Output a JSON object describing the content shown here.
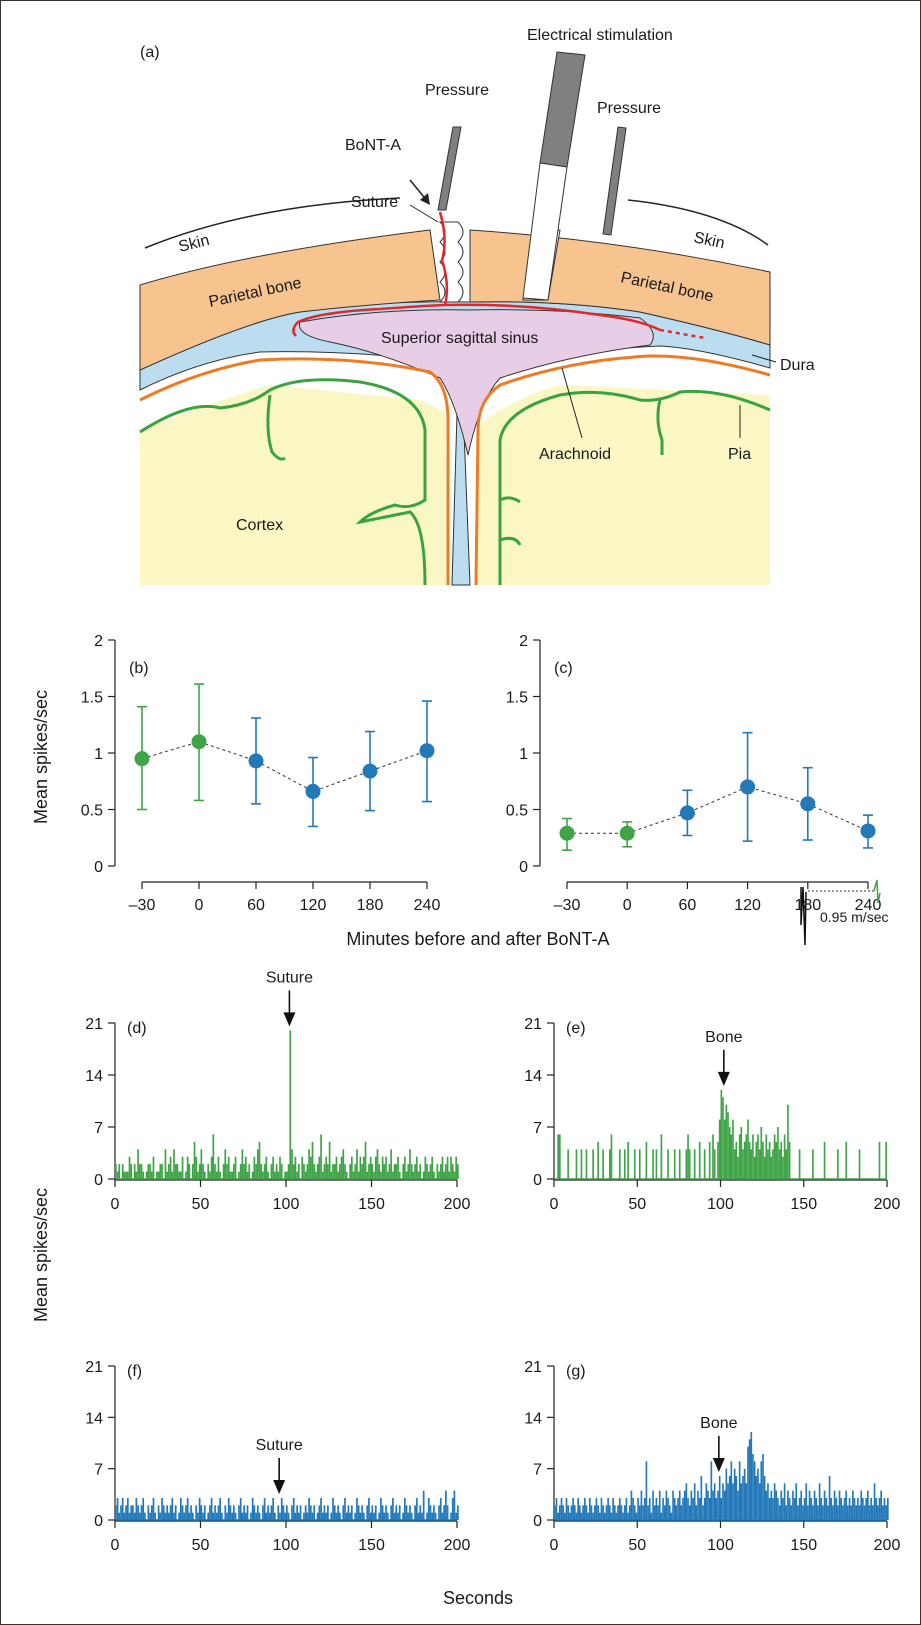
{
  "panel_a": {
    "label": "(a)",
    "labels": {
      "electrical_stimulation": "Electrical stimulation",
      "pressure_left": "Pressure",
      "pressure_right": "Pressure",
      "bont_a": "BoNT-A",
      "suture": "Suture",
      "skin_left": "Skin",
      "skin_right": "Skin",
      "parietal_left": "Parietal bone",
      "parietal_right": "Parietal bone",
      "sinus": "Superior sagittal sinus",
      "dura": "Dura",
      "arachnoid": "Arachnoid",
      "pia": "Pia",
      "cortex": "Cortex"
    },
    "colors": {
      "bone": "#f7c38e",
      "dura": "#bcdcf0",
      "sinus": "#e8cde6",
      "cortex": "#fbf7c4",
      "pia": "#3aa340",
      "arachnoid": "#f07a22",
      "nerve": "#e02828",
      "electrode": "#808080"
    }
  },
  "shared": {
    "mid_xlabel": "Minutes before and after BoNT-A",
    "mid_ylabel": "Mean spikes/sec",
    "bottom_xlabel": "Seconds",
    "bottom_ylabel": "Mean spikes/sec",
    "inset_speed": "0.95 m/sec"
  },
  "chart_data": [
    {
      "id": "b",
      "label": "(b)",
      "type": "scatter",
      "x": [
        "–30",
        "0",
        "60",
        "120",
        "180",
        "240"
      ],
      "y": [
        0.95,
        1.1,
        0.93,
        0.66,
        0.84,
        1.02
      ],
      "err_low": [
        0.5,
        0.58,
        0.55,
        0.35,
        0.49,
        0.57
      ],
      "err_high": [
        1.41,
        1.61,
        1.31,
        0.96,
        1.19,
        1.46
      ],
      "colors": [
        "#3fa447",
        "#3fa447",
        "#2378b8",
        "#2378b8",
        "#2378b8",
        "#2378b8"
      ],
      "yticks": [
        "0",
        "0.5",
        "1",
        "1.5",
        "2"
      ],
      "ylim": [
        0,
        2
      ]
    },
    {
      "id": "c",
      "label": "(c)",
      "type": "scatter",
      "x": [
        "–30",
        "0",
        "60",
        "120",
        "180",
        "240"
      ],
      "y": [
        0.29,
        0.29,
        0.47,
        0.7,
        0.55,
        0.31
      ],
      "err_low": [
        0.14,
        0.17,
        0.27,
        0.22,
        0.23,
        0.16
      ],
      "err_high": [
        0.42,
        0.39,
        0.67,
        1.18,
        0.87,
        0.45
      ],
      "colors": [
        "#3fa447",
        "#3fa447",
        "#2378b8",
        "#2378b8",
        "#2378b8",
        "#2378b8"
      ],
      "yticks": [
        "0",
        "0.5",
        "1",
        "1.5",
        "2"
      ],
      "ylim": [
        0,
        2
      ]
    },
    {
      "id": "d",
      "label": "(d)",
      "type": "bar",
      "color": "#3fa447",
      "xlim": [
        0,
        200
      ],
      "ylim": [
        0,
        21
      ],
      "xticks": [
        "0",
        "50",
        "100",
        "150",
        "200"
      ],
      "yticks": [
        "0",
        "7",
        "14",
        "21"
      ],
      "marker": {
        "label": "Suture",
        "x": 102
      },
      "bin_width": 1,
      "x_start": 0,
      "values": [
        2,
        1,
        2,
        0,
        2,
        1,
        1,
        1,
        3,
        2,
        0,
        2,
        1,
        4,
        2,
        2,
        1,
        0,
        1,
        2,
        2,
        1,
        3,
        0,
        1,
        1,
        2,
        2,
        0,
        4,
        1,
        2,
        3,
        1,
        4,
        2,
        2,
        1,
        1,
        3,
        0,
        1,
        3,
        2,
        0,
        2,
        5,
        3,
        1,
        2,
        4,
        2,
        1,
        0,
        2,
        1,
        3,
        6,
        2,
        1,
        3,
        1,
        0,
        2,
        4,
        2,
        3,
        1,
        1,
        2,
        3,
        0,
        1,
        2,
        4,
        2,
        3,
        1,
        2,
        0,
        1,
        3,
        2,
        4,
        5,
        2,
        1,
        2,
        3,
        1,
        0,
        2,
        3,
        1,
        2,
        1,
        3,
        2,
        0,
        1,
        1,
        2,
        20,
        4,
        2,
        3,
        1,
        2,
        0,
        3,
        2,
        1,
        2,
        4,
        3,
        5,
        2,
        1,
        2,
        3,
        6,
        1,
        2,
        3,
        2,
        5,
        1,
        2,
        2,
        3,
        1,
        2,
        3,
        4,
        2,
        1,
        0,
        2,
        3,
        1,
        2,
        4,
        1,
        3,
        2,
        3,
        5,
        1,
        2,
        3,
        2,
        1,
        3,
        4,
        2,
        1,
        3,
        2,
        3,
        1,
        2,
        4,
        1,
        2,
        2,
        3,
        1,
        0,
        2,
        3,
        1,
        2,
        4,
        2,
        1,
        2,
        3,
        1,
        2,
        0,
        1,
        3,
        2,
        1,
        2,
        3,
        1,
        0,
        2,
        1,
        2,
        3,
        1,
        2,
        3,
        1,
        3,
        2,
        1,
        3,
        2
      ]
    },
    {
      "id": "e",
      "label": "(e)",
      "type": "bar",
      "color": "#3fa447",
      "xlim": [
        0,
        200
      ],
      "ylim": [
        0,
        21
      ],
      "xticks": [
        "0",
        "50",
        "100",
        "150",
        "200"
      ],
      "yticks": [
        "0",
        "7",
        "14",
        "21"
      ],
      "marker": {
        "label": "Bone",
        "x": 102
      },
      "bin_width": 1,
      "x_start": 0,
      "values": [
        0,
        0,
        6,
        6,
        0,
        0,
        0,
        0,
        4,
        0,
        0,
        0,
        0,
        4,
        0,
        0,
        4,
        0,
        0,
        4,
        0,
        0,
        0,
        4,
        0,
        0,
        5,
        0,
        0,
        4,
        0,
        0,
        0,
        4,
        6,
        0,
        0,
        0,
        0,
        4,
        0,
        0,
        4,
        0,
        5,
        0,
        0,
        0,
        4,
        0,
        0,
        4,
        0,
        0,
        0,
        5,
        0,
        0,
        0,
        4,
        0,
        4,
        0,
        0,
        6,
        0,
        0,
        0,
        4,
        0,
        0,
        0,
        4,
        0,
        0,
        4,
        0,
        0,
        0,
        4,
        6,
        4,
        0,
        0,
        4,
        0,
        0,
        5,
        0,
        0,
        4,
        0,
        0,
        5,
        0,
        6,
        4,
        0,
        5,
        8,
        12,
        11,
        8,
        10,
        9,
        7,
        6,
        8,
        4,
        5,
        3,
        6,
        7,
        4,
        5,
        6,
        8,
        5,
        4,
        6,
        3,
        5,
        6,
        4,
        7,
        5,
        3,
        6,
        4,
        5,
        3,
        4,
        6,
        5,
        7,
        4,
        5,
        3,
        6,
        4,
        10,
        5,
        0,
        0,
        0,
        0,
        0,
        4,
        0,
        0,
        0,
        0,
        0,
        0,
        0,
        4,
        0,
        0,
        0,
        0,
        0,
        0,
        5,
        0,
        0,
        0,
        0,
        0,
        0,
        0,
        4,
        0,
        0,
        0,
        0,
        5,
        0,
        0,
        0,
        0,
        0,
        0,
        0,
        4,
        0,
        0,
        0,
        0,
        0,
        0,
        0,
        0,
        0,
        0,
        0,
        5,
        0,
        0,
        0,
        5,
        0
      ]
    },
    {
      "id": "f",
      "label": "(f)",
      "type": "bar",
      "color": "#2378b8",
      "xlim": [
        0,
        200
      ],
      "ylim": [
        0,
        21
      ],
      "xticks": [
        "0",
        "50",
        "100",
        "150",
        "200"
      ],
      "yticks": [
        "0",
        "7",
        "14",
        "21"
      ],
      "marker": {
        "label": "Suture",
        "x": 96
      },
      "bin_width": 1,
      "x_start": 0,
      "values": [
        2,
        3,
        1,
        2,
        3,
        1,
        2,
        3,
        1,
        2,
        2,
        1,
        3,
        2,
        1,
        2,
        3,
        1,
        0,
        2,
        1,
        2,
        3,
        1,
        0,
        2,
        1,
        3,
        2,
        1,
        2,
        1,
        2,
        3,
        1,
        2,
        0,
        1,
        3,
        2,
        1,
        2,
        3,
        1,
        2,
        1,
        0,
        2,
        1,
        3,
        2,
        1,
        2,
        0,
        1,
        2,
        3,
        1,
        2,
        1,
        2,
        3,
        1,
        0,
        2,
        1,
        3,
        2,
        1,
        2,
        1,
        0,
        2,
        3,
        1,
        2,
        1,
        2,
        0,
        1,
        3,
        2,
        1,
        2,
        1,
        0,
        2,
        3,
        1,
        2,
        1,
        2,
        3,
        1,
        0,
        2,
        1,
        3,
        2,
        1,
        2,
        1,
        0,
        2,
        3,
        1,
        2,
        1,
        2,
        0,
        1,
        2,
        1,
        3,
        2,
        1,
        2,
        0,
        1,
        2,
        3,
        1,
        2,
        1,
        2,
        0,
        1,
        3,
        2,
        1,
        2,
        1,
        0,
        2,
        3,
        1,
        2,
        1,
        2,
        0,
        1,
        3,
        2,
        1,
        2,
        1,
        0,
        2,
        3,
        1,
        2,
        1,
        2,
        0,
        1,
        3,
        2,
        1,
        2,
        1,
        0,
        2,
        3,
        1,
        2,
        1,
        2,
        0,
        1,
        3,
        2,
        1,
        2,
        1,
        0,
        2,
        3,
        1,
        2,
        1,
        4,
        0,
        1,
        3,
        2,
        1,
        2,
        1,
        0,
        2,
        3,
        1,
        2,
        4,
        2,
        0,
        1,
        3,
        4,
        1,
        2
      ]
    },
    {
      "id": "g",
      "label": "(g)",
      "type": "bar",
      "color": "#2378b8",
      "xlim": [
        0,
        200
      ],
      "ylim": [
        0,
        21
      ],
      "xticks": [
        "0",
        "50",
        "100",
        "150",
        "200"
      ],
      "yticks": [
        "0",
        "7",
        "14",
        "21"
      ],
      "marker": {
        "label": "Bone",
        "x": 99
      },
      "bin_width": 1,
      "x_start": 0,
      "values": [
        2,
        3,
        1,
        2,
        3,
        2,
        1,
        3,
        2,
        1,
        2,
        3,
        2,
        1,
        3,
        2,
        1,
        2,
        3,
        2,
        1,
        3,
        2,
        1,
        2,
        3,
        2,
        1,
        3,
        2,
        1,
        2,
        3,
        2,
        1,
        3,
        2,
        1,
        2,
        3,
        2,
        1,
        2,
        3,
        1,
        2,
        4,
        3,
        2,
        1,
        3,
        2,
        4,
        2,
        3,
        8,
        2,
        3,
        1,
        4,
        2,
        3,
        2,
        4,
        1,
        3,
        2,
        4,
        3,
        2,
        1,
        4,
        3,
        2,
        3,
        4,
        2,
        3,
        4,
        5,
        3,
        2,
        4,
        3,
        5,
        2,
        4,
        3,
        6,
        2,
        3,
        5,
        4,
        3,
        8,
        4,
        5,
        3,
        4,
        6,
        3,
        5,
        4,
        7,
        5,
        6,
        8,
        5,
        7,
        6,
        4,
        8,
        5,
        6,
        7,
        5,
        10,
        11,
        12,
        9,
        8,
        6,
        7,
        5,
        8,
        9,
        6,
        4,
        5,
        3,
        4,
        3,
        5,
        4,
        3,
        2,
        4,
        3,
        5,
        2,
        4,
        3,
        2,
        4,
        3,
        5,
        2,
        3,
        4,
        2,
        3,
        5,
        2,
        4,
        3,
        2,
        4,
        3,
        2,
        5,
        3,
        2,
        4,
        3,
        2,
        6,
        3,
        2,
        4,
        3,
        2,
        4,
        3,
        2,
        3,
        4,
        2,
        3,
        2,
        4,
        3,
        2,
        3,
        2,
        4,
        3,
        2,
        3,
        4,
        2,
        3,
        2,
        5,
        3,
        2,
        3,
        4,
        2,
        3,
        2,
        3
      ]
    }
  ]
}
